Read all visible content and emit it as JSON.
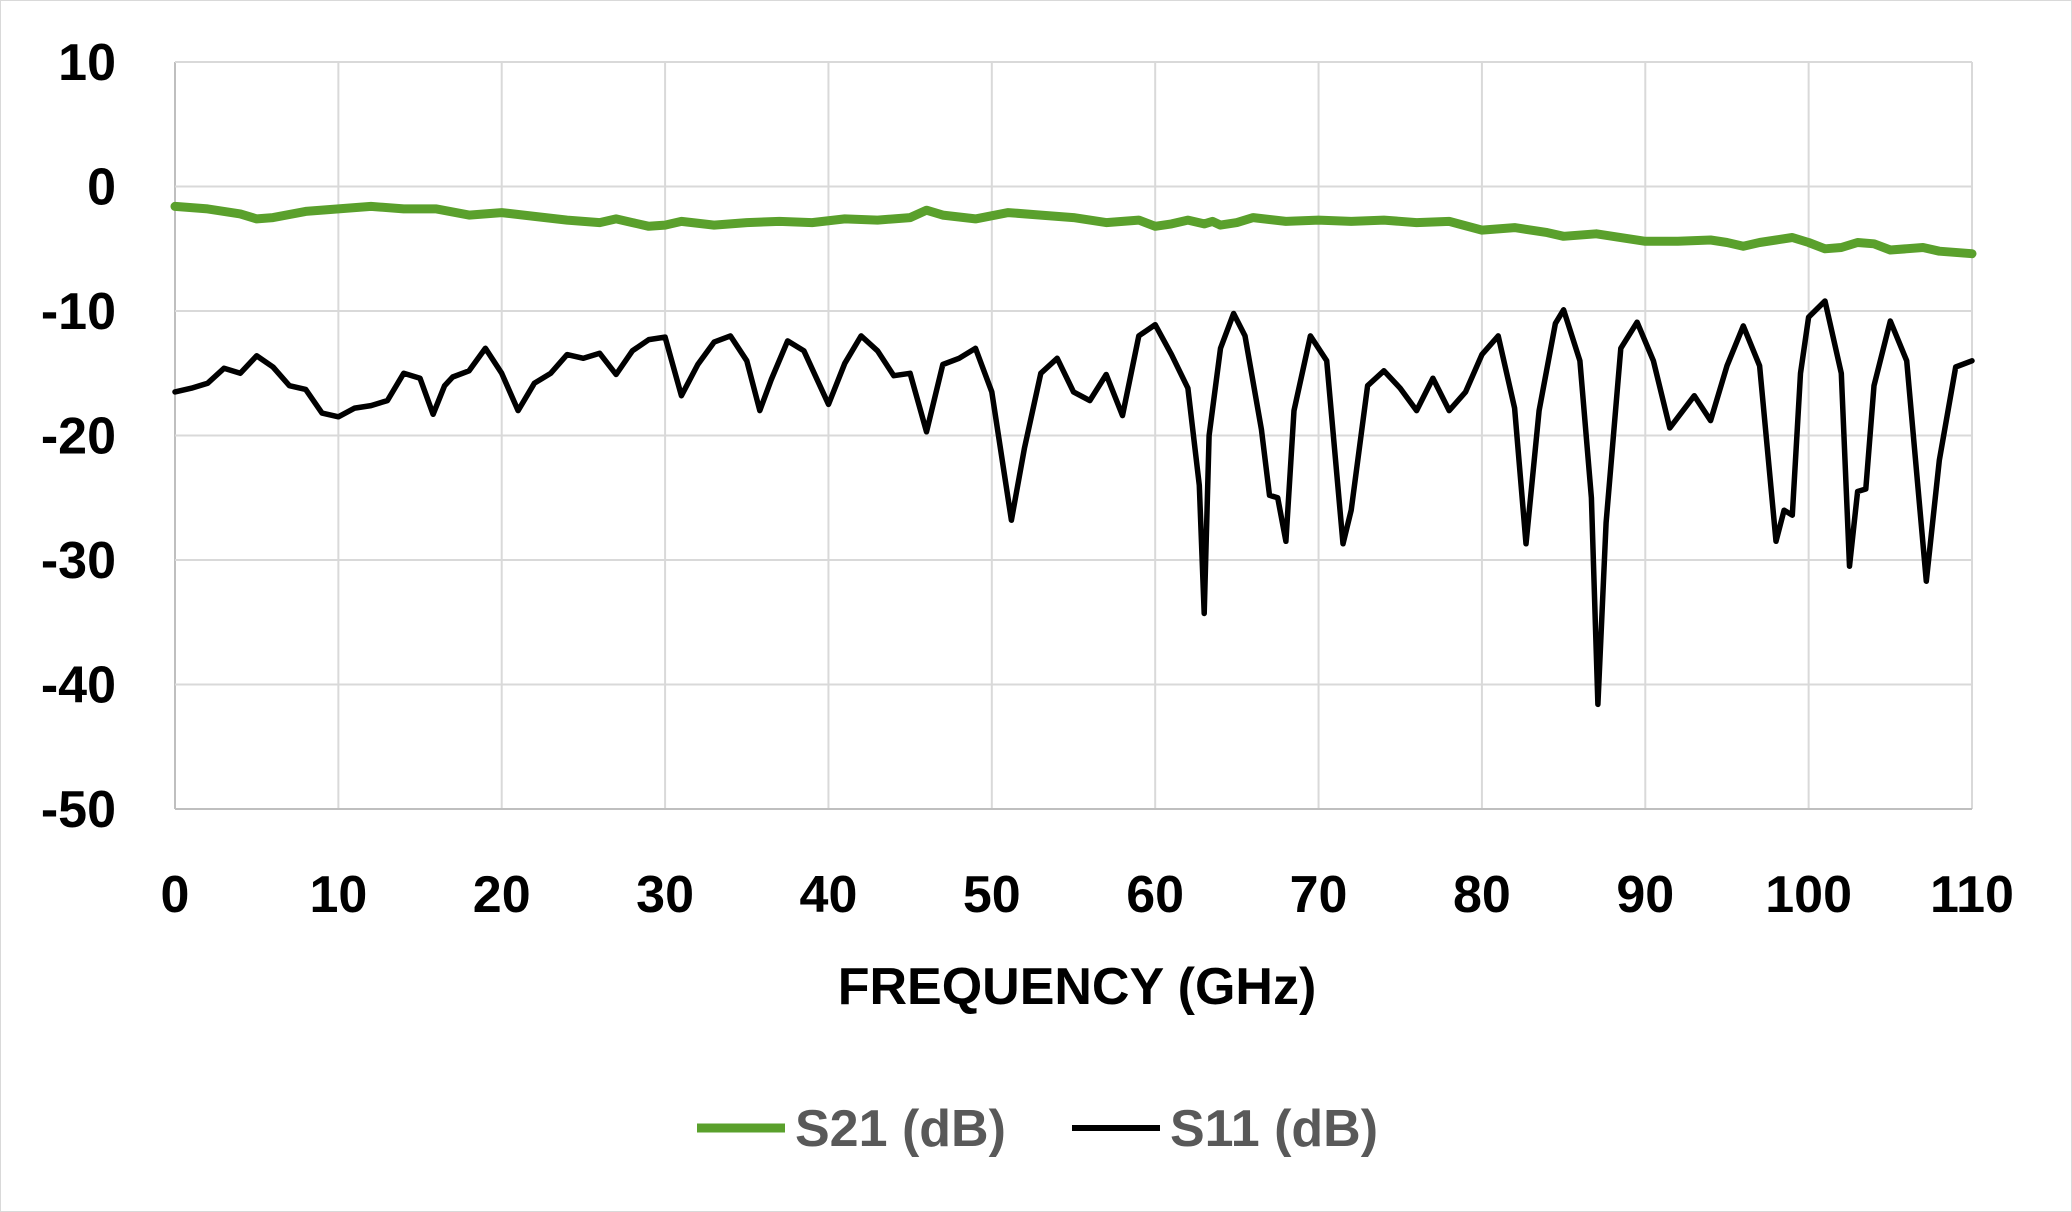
{
  "chart_data": {
    "type": "line",
    "xlabel": "FREQUENCY (GHz)",
    "ylabel": "",
    "xlim": [
      0,
      110
    ],
    "ylim": [
      -50,
      10
    ],
    "x_ticks": [
      "0",
      "10",
      "20",
      "30",
      "40",
      "50",
      "60",
      "70",
      "80",
      "90",
      "100",
      "110"
    ],
    "y_ticks": [
      "10",
      "0",
      "-10",
      "-20",
      "-30",
      "-40",
      "-50"
    ],
    "grid": true,
    "legend_position": "bottom",
    "series": [
      {
        "name": "S21 (dB)",
        "color": "#5aa02c",
        "points": [
          [
            0,
            -1.6
          ],
          [
            2,
            -1.8
          ],
          [
            4,
            -2.2
          ],
          [
            5,
            -2.6
          ],
          [
            6,
            -2.5
          ],
          [
            8,
            -2
          ],
          [
            10,
            -1.8
          ],
          [
            12,
            -1.6
          ],
          [
            14,
            -1.8
          ],
          [
            16,
            -1.8
          ],
          [
            18,
            -2.3
          ],
          [
            20,
            -2.1
          ],
          [
            22,
            -2.4
          ],
          [
            24,
            -2.7
          ],
          [
            26,
            -2.9
          ],
          [
            27,
            -2.6
          ],
          [
            28,
            -2.9
          ],
          [
            29,
            -3.2
          ],
          [
            30,
            -3.1
          ],
          [
            31,
            -2.8
          ],
          [
            33,
            -3.1
          ],
          [
            35,
            -2.9
          ],
          [
            37,
            -2.8
          ],
          [
            39,
            -2.9
          ],
          [
            41,
            -2.6
          ],
          [
            43,
            -2.7
          ],
          [
            45,
            -2.5
          ],
          [
            46,
            -1.9
          ],
          [
            47,
            -2.3
          ],
          [
            49,
            -2.6
          ],
          [
            51,
            -2.1
          ],
          [
            53,
            -2.3
          ],
          [
            55,
            -2.5
          ],
          [
            57,
            -2.9
          ],
          [
            59,
            -2.7
          ],
          [
            60,
            -3.2
          ],
          [
            61,
            -3
          ],
          [
            62,
            -2.7
          ],
          [
            63,
            -3
          ],
          [
            63.5,
            -2.8
          ],
          [
            64,
            -3.1
          ],
          [
            65,
            -2.9
          ],
          [
            66,
            -2.5
          ],
          [
            68,
            -2.8
          ],
          [
            70,
            -2.7
          ],
          [
            72,
            -2.8
          ],
          [
            74,
            -2.7
          ],
          [
            76,
            -2.9
          ],
          [
            78,
            -2.8
          ],
          [
            80,
            -3.5
          ],
          [
            82,
            -3.3
          ],
          [
            84,
            -3.7
          ],
          [
            85,
            -4
          ],
          [
            87,
            -3.8
          ],
          [
            89,
            -4.2
          ],
          [
            90,
            -4.4
          ],
          [
            92,
            -4.4
          ],
          [
            94,
            -4.3
          ],
          [
            95,
            -4.5
          ],
          [
            96,
            -4.8
          ],
          [
            97,
            -4.5
          ],
          [
            98,
            -4.3
          ],
          [
            99,
            -4.1
          ],
          [
            100,
            -4.5
          ],
          [
            101,
            -5
          ],
          [
            102,
            -4.9
          ],
          [
            103,
            -4.5
          ],
          [
            104,
            -4.6
          ],
          [
            105,
            -5.1
          ],
          [
            107,
            -4.9
          ],
          [
            108,
            -5.2
          ],
          [
            110,
            -5.4
          ]
        ]
      },
      {
        "name": "S11 (dB)",
        "color": "#000000",
        "points": [
          [
            0,
            -16.5
          ],
          [
            1,
            -16.2
          ],
          [
            2,
            -15.8
          ],
          [
            3,
            -14.6
          ],
          [
            4,
            -15
          ],
          [
            5,
            -13.6
          ],
          [
            6,
            -14.5
          ],
          [
            7,
            -16
          ],
          [
            8,
            -16.3
          ],
          [
            9,
            -18.2
          ],
          [
            10,
            -18.5
          ],
          [
            11,
            -17.8
          ],
          [
            12,
            -17.6
          ],
          [
            13,
            -17.2
          ],
          [
            14,
            -15
          ],
          [
            15,
            -15.4
          ],
          [
            15.8,
            -18.3
          ],
          [
            16.5,
            -16
          ],
          [
            17,
            -15.3
          ],
          [
            18,
            -14.8
          ],
          [
            19,
            -13
          ],
          [
            20,
            -15
          ],
          [
            21,
            -18
          ],
          [
            22,
            -15.8
          ],
          [
            23,
            -15
          ],
          [
            24,
            -13.5
          ],
          [
            25,
            -13.8
          ],
          [
            26,
            -13.4
          ],
          [
            27,
            -15.1
          ],
          [
            28,
            -13.2
          ],
          [
            29,
            -12.3
          ],
          [
            30,
            -12.1
          ],
          [
            31,
            -16.8
          ],
          [
            32,
            -14.3
          ],
          [
            33,
            -12.5
          ],
          [
            34,
            -12
          ],
          [
            35,
            -14
          ],
          [
            35.8,
            -18
          ],
          [
            36.5,
            -15.5
          ],
          [
            37.5,
            -12.4
          ],
          [
            38.5,
            -13.2
          ],
          [
            40,
            -17.5
          ],
          [
            41,
            -14.2
          ],
          [
            42,
            -12
          ],
          [
            43,
            -13.2
          ],
          [
            44,
            -15.2
          ],
          [
            45,
            -15
          ],
          [
            46,
            -19.7
          ],
          [
            47,
            -14.3
          ],
          [
            48,
            -13.8
          ],
          [
            49,
            -13
          ],
          [
            50,
            -16.5
          ],
          [
            51.2,
            -26.8
          ],
          [
            52,
            -21
          ],
          [
            53,
            -15
          ],
          [
            54,
            -13.8
          ],
          [
            55,
            -16.5
          ],
          [
            56,
            -17.2
          ],
          [
            57,
            -15.1
          ],
          [
            58,
            -18.4
          ],
          [
            59,
            -12
          ],
          [
            60,
            -11.1
          ],
          [
            61,
            -13.5
          ],
          [
            62,
            -16.2
          ],
          [
            62.7,
            -24
          ],
          [
            63,
            -34.3
          ],
          [
            63.3,
            -20
          ],
          [
            64,
            -13
          ],
          [
            64.8,
            -10.2
          ],
          [
            65.5,
            -12
          ],
          [
            66.5,
            -19.5
          ],
          [
            67,
            -24.8
          ],
          [
            67.5,
            -25
          ],
          [
            68,
            -28.5
          ],
          [
            68.5,
            -18
          ],
          [
            69.5,
            -12
          ],
          [
            70.5,
            -14
          ],
          [
            71.5,
            -28.7
          ],
          [
            72,
            -26
          ],
          [
            73,
            -16
          ],
          [
            74,
            -14.8
          ],
          [
            75,
            -16.2
          ],
          [
            76,
            -18
          ],
          [
            77,
            -15.4
          ],
          [
            78,
            -18
          ],
          [
            79,
            -16.5
          ],
          [
            80,
            -13.5
          ],
          [
            81,
            -12
          ],
          [
            82,
            -17.8
          ],
          [
            82.7,
            -28.7
          ],
          [
            83.5,
            -18
          ],
          [
            84.5,
            -11
          ],
          [
            85,
            -9.9
          ],
          [
            86,
            -14
          ],
          [
            86.7,
            -25
          ],
          [
            87.1,
            -41.6
          ],
          [
            87.6,
            -27
          ],
          [
            88.5,
            -13
          ],
          [
            89.5,
            -10.9
          ],
          [
            90.5,
            -14
          ],
          [
            91.5,
            -19.4
          ],
          [
            93,
            -16.8
          ],
          [
            94,
            -18.8
          ],
          [
            95,
            -14.4
          ],
          [
            96,
            -11.2
          ],
          [
            97,
            -14.4
          ],
          [
            98,
            -28.5
          ],
          [
            98.5,
            -26
          ],
          [
            99,
            -26.4
          ],
          [
            99.5,
            -15
          ],
          [
            100,
            -10.5
          ],
          [
            101,
            -9.2
          ],
          [
            102,
            -15
          ],
          [
            102.5,
            -30.5
          ],
          [
            103,
            -24.5
          ],
          [
            103.5,
            -24.3
          ],
          [
            104,
            -16
          ],
          [
            105,
            -10.8
          ],
          [
            106,
            -14
          ],
          [
            107.2,
            -31.7
          ],
          [
            108,
            -22
          ],
          [
            109,
            -14.5
          ],
          [
            110,
            -14
          ]
        ]
      }
    ]
  }
}
